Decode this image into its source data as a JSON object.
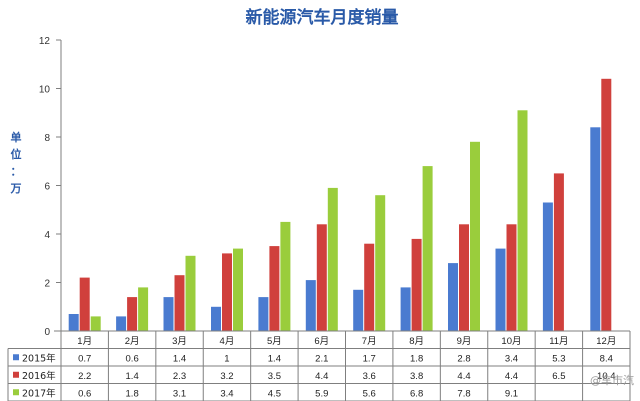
{
  "chart_data": {
    "type": "bar",
    "title": "新能源汽车月度销量",
    "ylabel_chars": [
      "单",
      "位",
      "：",
      "万"
    ],
    "ylim": [
      0,
      12
    ],
    "yticks": [
      "0",
      "2",
      "4",
      "6",
      "8",
      "10",
      "12"
    ],
    "grid": false,
    "legend": "data-table-bottom",
    "categories": [
      "1月",
      "2月",
      "3月",
      "4月",
      "5月",
      "6月",
      "7月",
      "8月",
      "9月",
      "10月",
      "11月",
      "12月"
    ],
    "series": [
      {
        "name": "2015年",
        "color": "#4a7bd0",
        "values": [
          0.7,
          0.6,
          1.4,
          1,
          1.4,
          2.1,
          1.7,
          1.8,
          2.8,
          3.4,
          5.3,
          8.4
        ],
        "labels": [
          "0.7",
          "0.6",
          "1.4",
          "1",
          "1.4",
          "2.1",
          "1.7",
          "1.8",
          "2.8",
          "3.4",
          "5.3",
          "8.4"
        ]
      },
      {
        "name": "2016年",
        "color": "#d0403c",
        "values": [
          2.2,
          1.4,
          2.3,
          3.2,
          3.5,
          4.4,
          3.6,
          3.8,
          4.4,
          4.4,
          6.5,
          10.4
        ],
        "labels": [
          "2.2",
          "1.4",
          "2.3",
          "3.2",
          "3.5",
          "4.4",
          "3.6",
          "3.8",
          "4.4",
          "4.4",
          "6.5",
          "10.4"
        ]
      },
      {
        "name": "2017年",
        "color": "#9acd3c",
        "values": [
          0.6,
          1.8,
          3.1,
          3.4,
          4.5,
          5.9,
          5.6,
          6.8,
          7.8,
          9.1,
          null,
          null
        ],
        "labels": [
          "0.6",
          "1.8",
          "3.1",
          "3.4",
          "4.5",
          "5.9",
          "5.6",
          "6.8",
          "7.8",
          "9.1",
          "",
          ""
        ]
      }
    ]
  },
  "watermark": "@车市汽"
}
